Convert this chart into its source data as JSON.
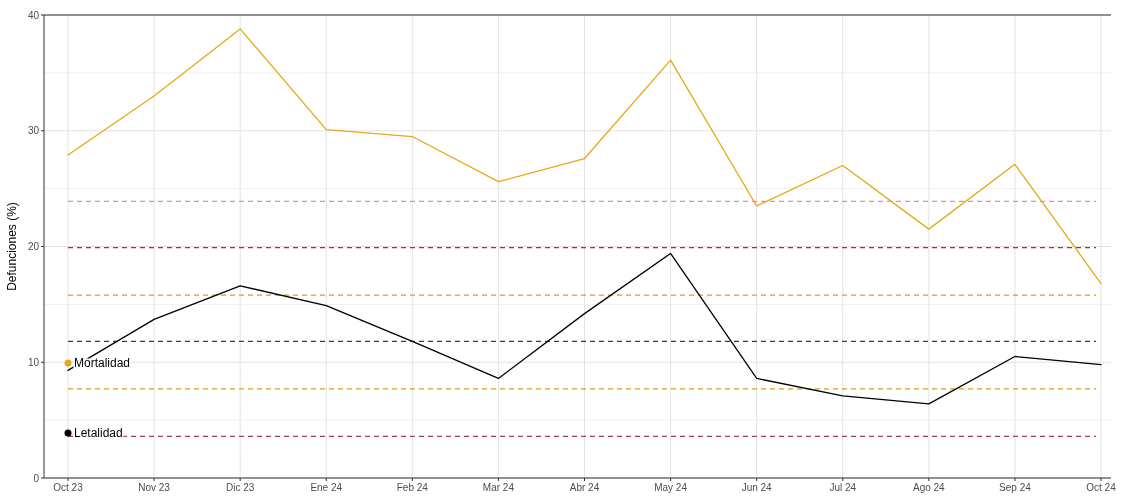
{
  "chart_data": {
    "type": "line",
    "ylabel": "Defunciones (%)",
    "categories": [
      "Oct 23",
      "Nov 23",
      "Dic 23",
      "Ene 24",
      "Feb 24",
      "Mar 24",
      "Abr 24",
      "May 24",
      "Jun 24",
      "Jul 24",
      "Ago 24",
      "Sep 24",
      "Oct 24"
    ],
    "series": [
      {
        "name": "Mortalidad",
        "color": "#e6a817",
        "values": [
          27.9,
          33.0,
          38.8,
          30.1,
          29.5,
          25.6,
          27.6,
          36.1,
          23.5,
          27.0,
          21.5,
          27.1,
          16.8
        ]
      },
      {
        "name": "Letalidad",
        "color": "#000000",
        "values": [
          9.3,
          13.7,
          16.6,
          14.9,
          11.8,
          8.6,
          14.2,
          19.4,
          8.6,
          7.1,
          6.4,
          10.5,
          9.8
        ]
      }
    ],
    "ylim": [
      0,
      40
    ],
    "yticks": [
      0,
      10,
      20,
      30,
      40
    ],
    "grid": true,
    "legend": "left",
    "marker": "none",
    "line_style": "solid",
    "ref_lines": [
      {
        "axis": "y",
        "value": 23.9,
        "color": "#e8909a",
        "line_style": "dashed"
      },
      {
        "axis": "y",
        "value": 19.9,
        "color": "#c0282c",
        "line_style": "dashed"
      },
      {
        "axis": "y",
        "value": 15.8,
        "color": "#d4a020",
        "line_style": "dashed"
      },
      {
        "axis": "y",
        "value": 11.8,
        "color": "#2c3580",
        "line_style": "dashed"
      },
      {
        "axis": "y",
        "value": 7.7,
        "color": "#d4a020",
        "line_style": "dashed"
      },
      {
        "axis": "y",
        "value": 3.6,
        "color": "#a04050",
        "line_style": "dashed"
      }
    ]
  }
}
